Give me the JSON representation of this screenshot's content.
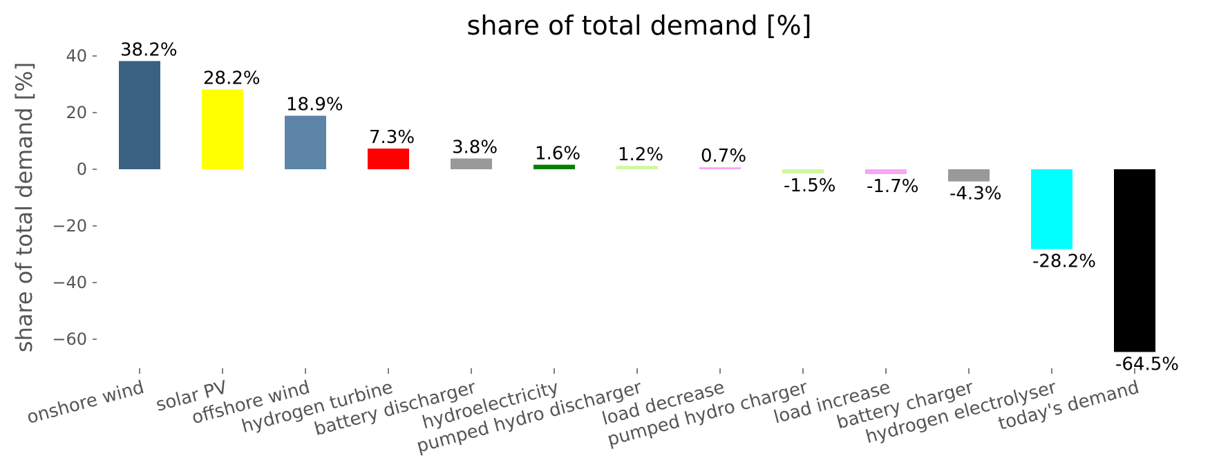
{
  "chart_data": {
    "type": "bar",
    "title": "share of total demand [%]",
    "ylabel": "share of total demand [%]",
    "xlabel": "",
    "ylim": [
      -70,
      42
    ],
    "yticks": [
      40,
      20,
      0,
      -20,
      -40,
      -60
    ],
    "ytick_labels": [
      "40",
      "20",
      "0",
      "−20",
      "−40",
      "−60"
    ],
    "grid": false,
    "categories": [
      "onshore wind",
      "solar PV",
      "offshore wind",
      "hydrogen turbine",
      "battery discharger",
      "hydroelectricity",
      "pumped hydro discharger",
      "load decrease",
      "pumped hydro charger",
      "load increase",
      "battery charger",
      "hydrogen electrolyser",
      "today's demand"
    ],
    "values": [
      38.2,
      28.2,
      18.9,
      7.3,
      3.8,
      1.6,
      1.2,
      0.7,
      -1.5,
      -1.7,
      -4.3,
      -28.2,
      -64.5
    ],
    "data_labels": [
      "38.2%",
      "28.2%",
      "18.9%",
      "7.3%",
      "3.8%",
      "1.6%",
      "1.2%",
      "0.7%",
      "-1.5%",
      "-1.7%",
      "-4.3%",
      "-28.2%",
      "-64.5%"
    ],
    "colors": [
      "#3b6182",
      "#ffff00",
      "#5d85a7",
      "#ff0000",
      "#999999",
      "#008000",
      "#d4f5a0",
      "#f7a6f4",
      "#d4f5a0",
      "#f7a6f4",
      "#999999",
      "#00ffff",
      "#000000"
    ]
  }
}
